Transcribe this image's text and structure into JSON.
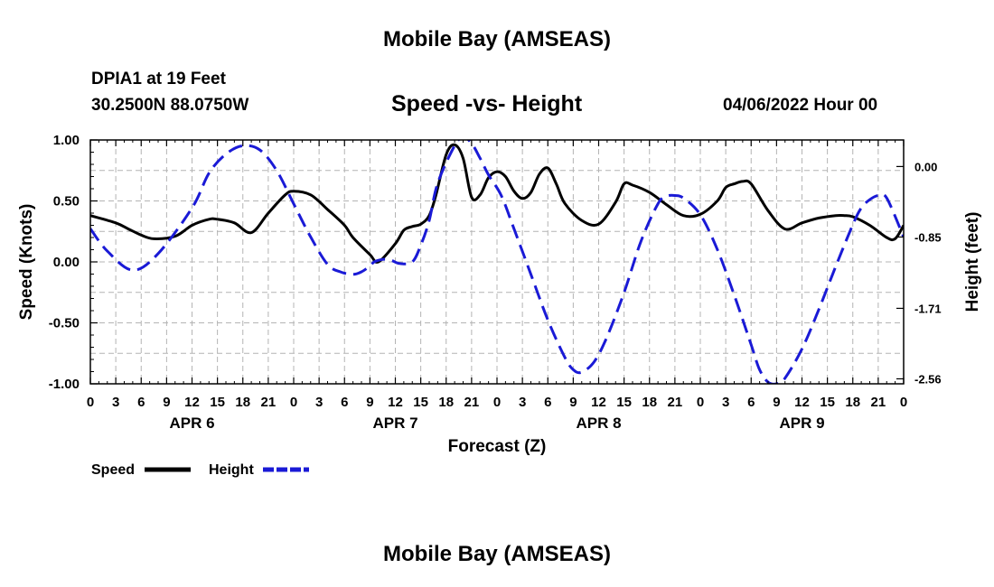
{
  "header": {
    "title": "Mobile Bay (AMSEAS)",
    "station": "DPIA1 at 19 Feet",
    "coordinates": "30.2500N  88.0750W",
    "subtitle": "Speed -vs- Height",
    "datetime": "04/06/2022 Hour 00"
  },
  "footer": {
    "title": "Mobile Bay (AMSEAS)"
  },
  "chart_data": {
    "type": "line",
    "title": "Speed -vs- Height",
    "xlabel": "Forecast (Z)",
    "ylabel_left": "Speed (Knots)",
    "ylabel_right": "Height (feet)",
    "x_range_hours": [
      0,
      96
    ],
    "x_tick_labels": [
      "0",
      "3",
      "6",
      "9",
      "12",
      "15",
      "18",
      "21",
      "0",
      "3",
      "6",
      "9",
      "12",
      "15",
      "18",
      "21",
      "0",
      "3",
      "6",
      "9",
      "12",
      "15",
      "18",
      "21",
      "0",
      "3",
      "6",
      "9",
      "12",
      "15",
      "18",
      "21",
      "0"
    ],
    "day_labels": [
      "APR 6",
      "APR 7",
      "APR 8",
      "APR 9"
    ],
    "y_left": {
      "range": [
        -1.0,
        1.0
      ],
      "ticks": [
        "1.00",
        "0.50",
        "0.00",
        "-0.50",
        "-1.00"
      ],
      "tick_values": [
        1.0,
        0.5,
        0.0,
        -0.5,
        -1.0
      ]
    },
    "y_right": {
      "range": [
        -2.62,
        0.32
      ],
      "ticks": [
        "0.00",
        "-0.85",
        "-1.71",
        "-2.56"
      ],
      "tick_values": [
        0.0,
        -0.85,
        -1.71,
        -2.56
      ]
    },
    "grid": true,
    "legend": {
      "position": "bottom-left",
      "items": [
        {
          "label": "Speed",
          "color": "#000000",
          "style": "solid"
        },
        {
          "label": "Height",
          "color": "#1a1ad6",
          "style": "dashed"
        }
      ]
    },
    "series": [
      {
        "name": "Speed",
        "axis": "left",
        "color": "#000000",
        "style": "solid",
        "units": "knots",
        "x": [
          0,
          3,
          4.5,
          6,
          7.5,
          10,
          12,
          14,
          15,
          17,
          19,
          21,
          23,
          24,
          26,
          28,
          30,
          31,
          33,
          34,
          36,
          37,
          38,
          39,
          40,
          40.8,
          42,
          43,
          44,
          45,
          46,
          47,
          48,
          49,
          50,
          51,
          52,
          53,
          54,
          55,
          56,
          58,
          60,
          62,
          63,
          64,
          66,
          68,
          70,
          72,
          74,
          75,
          76,
          77,
          78,
          80,
          82,
          84,
          86,
          88,
          89,
          90,
          92,
          94,
          95,
          96
        ],
        "values": [
          0.38,
          0.32,
          0.27,
          0.22,
          0.19,
          0.21,
          0.3,
          0.35,
          0.35,
          0.32,
          0.24,
          0.4,
          0.55,
          0.58,
          0.55,
          0.43,
          0.3,
          0.2,
          0.06,
          0.0,
          0.15,
          0.26,
          0.29,
          0.31,
          0.38,
          0.55,
          0.88,
          0.96,
          0.85,
          0.53,
          0.55,
          0.69,
          0.74,
          0.7,
          0.58,
          0.52,
          0.57,
          0.72,
          0.77,
          0.64,
          0.48,
          0.34,
          0.31,
          0.49,
          0.64,
          0.63,
          0.57,
          0.47,
          0.38,
          0.39,
          0.5,
          0.61,
          0.64,
          0.66,
          0.64,
          0.42,
          0.27,
          0.32,
          0.36,
          0.38,
          0.38,
          0.37,
          0.3,
          0.2,
          0.19,
          0.3
        ]
      },
      {
        "name": "Height",
        "axis": "right",
        "color": "#1a1ad6",
        "style": "dashed",
        "units": "feet",
        "x": [
          0,
          2,
          5,
          8,
          12,
          14,
          16,
          18,
          20,
          22,
          24,
          26,
          28,
          29.5,
          31,
          32,
          33,
          33.5,
          34.5,
          35.5,
          36.5,
          38,
          39,
          40,
          41,
          43,
          44,
          45,
          46,
          47,
          48.5,
          50,
          52,
          54,
          56,
          57,
          58,
          59.5,
          61,
          63,
          65,
          67,
          68,
          69,
          70,
          72,
          74,
          76,
          78,
          79,
          80,
          81,
          82,
          84,
          86,
          88,
          90,
          91,
          92,
          93,
          94,
          96
        ],
        "values": [
          -0.75,
          -1.02,
          -1.25,
          -1.05,
          -0.5,
          -0.08,
          0.15,
          0.25,
          0.2,
          -0.05,
          -0.45,
          -0.85,
          -1.18,
          -1.27,
          -1.3,
          -1.27,
          -1.2,
          -1.15,
          -1.12,
          -1.13,
          -1.17,
          -1.15,
          -0.95,
          -0.65,
          -0.2,
          0.25,
          0.35,
          0.28,
          0.1,
          -0.1,
          -0.35,
          -0.75,
          -1.3,
          -1.85,
          -2.3,
          -2.45,
          -2.48,
          -2.35,
          -2.05,
          -1.52,
          -0.9,
          -0.45,
          -0.36,
          -0.35,
          -0.38,
          -0.58,
          -1.0,
          -1.55,
          -2.15,
          -2.45,
          -2.6,
          -2.62,
          -2.55,
          -2.2,
          -1.72,
          -1.2,
          -0.7,
          -0.5,
          -0.4,
          -0.35,
          -0.38,
          -0.85
        ]
      }
    ]
  }
}
